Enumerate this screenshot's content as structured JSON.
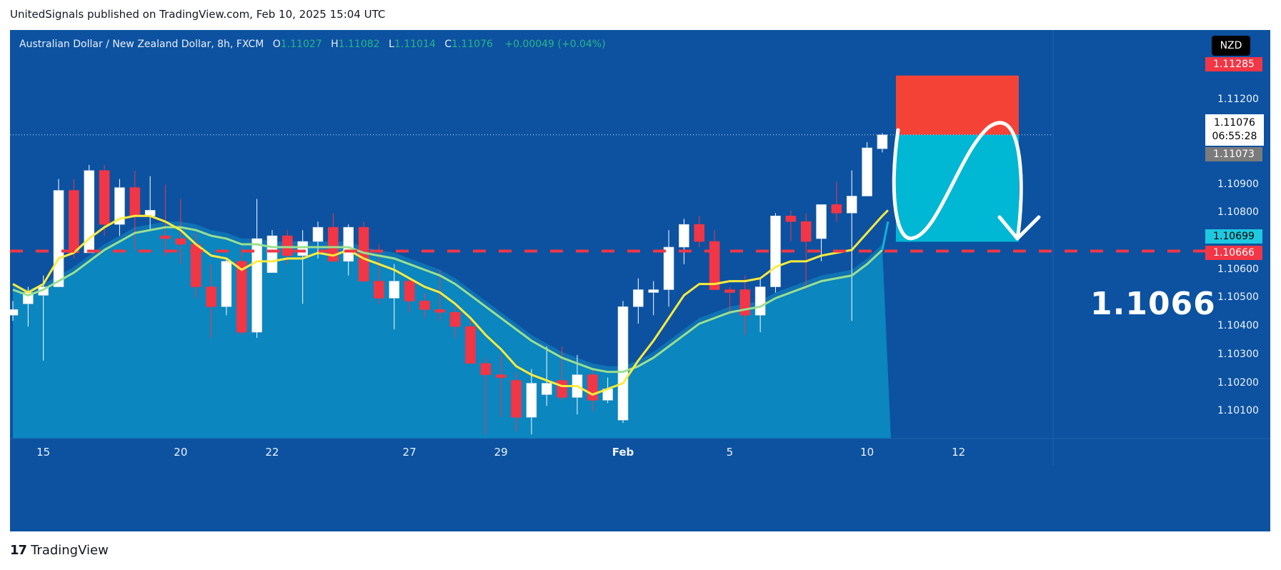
{
  "header": {
    "published": "UnitedSignals published on TradingView.com, Feb 10, 2025 15:04 UTC"
  },
  "legend": {
    "symbol": "Australian Dollar / New Zealand Dollar, 8h, FXCM",
    "open_label": "O",
    "open": "1.11027",
    "high_label": "H",
    "high": "1.11082",
    "low_label": "L",
    "low": "1.11014",
    "close_label": "C",
    "close": "1.11076",
    "change": "+0.00049 (+0.04%)"
  },
  "currency": "NZD",
  "price_tags": {
    "stop": "1.11285",
    "last": "1.11076",
    "countdown": "06:55:28",
    "prev": "1.11073",
    "entry": "1.10699",
    "target": "1.10666"
  },
  "annotation": "1.1066",
  "footer": {
    "brand_mark": "17",
    "brand": "TradingView"
  },
  "colors": {
    "bg": "#0c52a0",
    "up": "#ffffff",
    "down": "#f23645",
    "ema_fast": "#ffeb3b",
    "ema_slow": "#9be08f",
    "stop_box": "#f44336",
    "target_box": "#00b7d4",
    "dash": "#f23645"
  },
  "chart_data": {
    "type": "candlestick",
    "ylim": [
      1.1001,
      1.1137
    ],
    "y_ticks": [
      "1.10100",
      "1.10200",
      "1.10300",
      "1.10400",
      "1.10500",
      "1.10600",
      "1.10800",
      "1.10900",
      "1.11200"
    ],
    "x_labels": [
      {
        "label": "15",
        "i": 2
      },
      {
        "label": "20",
        "i": 11
      },
      {
        "label": "22",
        "i": 17
      },
      {
        "label": "27",
        "i": 26
      },
      {
        "label": "29",
        "i": 32
      },
      {
        "label": "Feb",
        "i": 40
      },
      {
        "label": "5",
        "i": 47
      },
      {
        "label": "10",
        "i": 56
      },
      {
        "label": "12",
        "i": 62
      }
    ],
    "candles": [
      [
        1.1044,
        1.1046,
        1.1042,
        1.1049
      ],
      [
        1.1048,
        1.1052,
        1.104,
        1.1054
      ],
      [
        1.1051,
        1.1054,
        1.1028,
        1.1058
      ],
      [
        1.1054,
        1.1088,
        1.1054,
        1.1092
      ],
      [
        1.1088,
        1.1066,
        1.1064,
        1.1092
      ],
      [
        1.1066,
        1.1095,
        1.1066,
        1.1097
      ],
      [
        1.1095,
        1.1076,
        1.1072,
        1.1097
      ],
      [
        1.1076,
        1.1089,
        1.1072,
        1.1092
      ],
      [
        1.1089,
        1.1079,
        1.1067,
        1.1095
      ],
      [
        1.1079,
        1.1081,
        1.1074,
        1.1093
      ],
      [
        1.1072,
        1.1071,
        1.1065,
        1.109
      ],
      [
        1.1071,
        1.1069,
        1.1062,
        1.1085
      ],
      [
        1.1069,
        1.1054,
        1.105,
        1.1073
      ],
      [
        1.1054,
        1.1047,
        1.1036,
        1.1062
      ],
      [
        1.1047,
        1.1063,
        1.1044,
        1.1064
      ],
      [
        1.1063,
        1.1038,
        1.1037,
        1.1068
      ],
      [
        1.1038,
        1.1071,
        1.1036,
        1.1085
      ],
      [
        1.1059,
        1.1072,
        1.1059,
        1.1074
      ],
      [
        1.1072,
        1.1065,
        1.1062,
        1.1074
      ],
      [
        1.1065,
        1.107,
        1.1048,
        1.1074
      ],
      [
        1.107,
        1.1075,
        1.1064,
        1.1077
      ],
      [
        1.1075,
        1.1063,
        1.1063,
        1.108
      ],
      [
        1.1063,
        1.1075,
        1.1058,
        1.1076
      ],
      [
        1.1075,
        1.1056,
        1.1056,
        1.1077
      ],
      [
        1.1056,
        1.105,
        1.1048,
        1.1069
      ],
      [
        1.105,
        1.1056,
        1.1039,
        1.1062
      ],
      [
        1.1056,
        1.1049,
        1.1045,
        1.1057
      ],
      [
        1.1049,
        1.1046,
        1.1043,
        1.1052
      ],
      [
        1.1046,
        1.1045,
        1.1042,
        1.106
      ],
      [
        1.1045,
        1.104,
        1.1036,
        1.1047
      ],
      [
        1.104,
        1.1027,
        1.1027,
        1.1043
      ],
      [
        1.1027,
        1.1023,
        1.1002,
        1.1029
      ],
      [
        1.1023,
        1.1022,
        1.1008,
        1.103
      ],
      [
        1.1021,
        1.1008,
        1.1003,
        1.1024
      ],
      [
        1.1008,
        1.102,
        1.1002,
        1.1025
      ],
      [
        1.1016,
        1.102,
        1.1012,
        1.1033
      ],
      [
        1.1021,
        1.1015,
        1.1014,
        1.1033
      ],
      [
        1.1015,
        1.1023,
        1.1009,
        1.103
      ],
      [
        1.1023,
        1.1014,
        1.101,
        1.1025
      ],
      [
        1.1014,
        1.1018,
        1.1013,
        1.1022
      ],
      [
        1.1007,
        1.1047,
        1.1006,
        1.1049
      ],
      [
        1.1047,
        1.1053,
        1.1041,
        1.1057
      ],
      [
        1.1052,
        1.1053,
        1.1044,
        1.1056
      ],
      [
        1.1053,
        1.1068,
        1.1047,
        1.1074
      ],
      [
        1.1068,
        1.1076,
        1.1062,
        1.1078
      ],
      [
        1.1076,
        1.107,
        1.1068,
        1.1079
      ],
      [
        1.107,
        1.1053,
        1.1053,
        1.1074
      ],
      [
        1.1053,
        1.1052,
        1.1044,
        1.1054
      ],
      [
        1.1053,
        1.1044,
        1.1037,
        1.1058
      ],
      [
        1.1044,
        1.1054,
        1.1038,
        1.1057
      ],
      [
        1.1054,
        1.1079,
        1.1052,
        1.108
      ],
      [
        1.1079,
        1.1077,
        1.107,
        1.1081
      ],
      [
        1.1077,
        1.107,
        1.1053,
        1.108
      ],
      [
        1.1071,
        1.1083,
        1.1063,
        1.1083
      ],
      [
        1.1083,
        1.108,
        1.1077,
        1.1091
      ],
      [
        1.108,
        1.1086,
        1.1042,
        1.1095
      ],
      [
        1.1086,
        1.1103,
        1.1086,
        1.1105
      ],
      [
        1.11027,
        1.11076,
        1.11014,
        1.11082
      ]
    ],
    "ema_fast": [
      1.1055,
      1.1052,
      1.1055,
      1.1064,
      1.1066,
      1.1071,
      1.1075,
      1.1078,
      1.1079,
      1.1079,
      1.1077,
      1.1074,
      1.1069,
      1.1065,
      1.1064,
      1.106,
      1.1063,
      1.1063,
      1.1064,
      1.1064,
      1.1066,
      1.1065,
      1.1067,
      1.1064,
      1.1062,
      1.106,
      1.1057,
      1.1054,
      1.1052,
      1.1048,
      1.1043,
      1.1037,
      1.1032,
      1.1026,
      1.1023,
      1.1021,
      1.1019,
      1.1019,
      1.1016,
      1.1018,
      1.102,
      1.1028,
      1.1035,
      1.1043,
      1.1051,
      1.1055,
      1.1055,
      1.1056,
      1.1056,
      1.1057,
      1.1061,
      1.1063,
      1.1063,
      1.1065,
      1.1066,
      1.1067,
      1.1073,
      1.1079
    ],
    "ema_slow": [
      1.1053,
      1.1051,
      1.1053,
      1.1056,
      1.1059,
      1.1063,
      1.1067,
      1.107,
      1.1073,
      1.1074,
      1.1075,
      1.1075,
      1.1074,
      1.1072,
      1.1071,
      1.1069,
      1.1069,
      1.1068,
      1.1068,
      1.1068,
      1.1068,
      1.1068,
      1.1068,
      1.1066,
      1.1065,
      1.1064,
      1.1062,
      1.106,
      1.1058,
      1.1055,
      1.1051,
      1.1047,
      1.1043,
      1.1039,
      1.1035,
      1.1032,
      1.1029,
      1.1027,
      1.1025,
      1.1024,
      1.1024,
      1.1026,
      1.1029,
      1.1033,
      1.1037,
      1.1041,
      1.1043,
      1.1045,
      1.1046,
      1.1047,
      1.105,
      1.1052,
      1.1054,
      1.1056,
      1.1057,
      1.1058,
      1.1062,
      1.1067
    ],
    "levels": {
      "stop": 1.11285,
      "entry_top": 1.11076,
      "target_bottom": 1.10699,
      "dashed": 1.10666
    }
  }
}
